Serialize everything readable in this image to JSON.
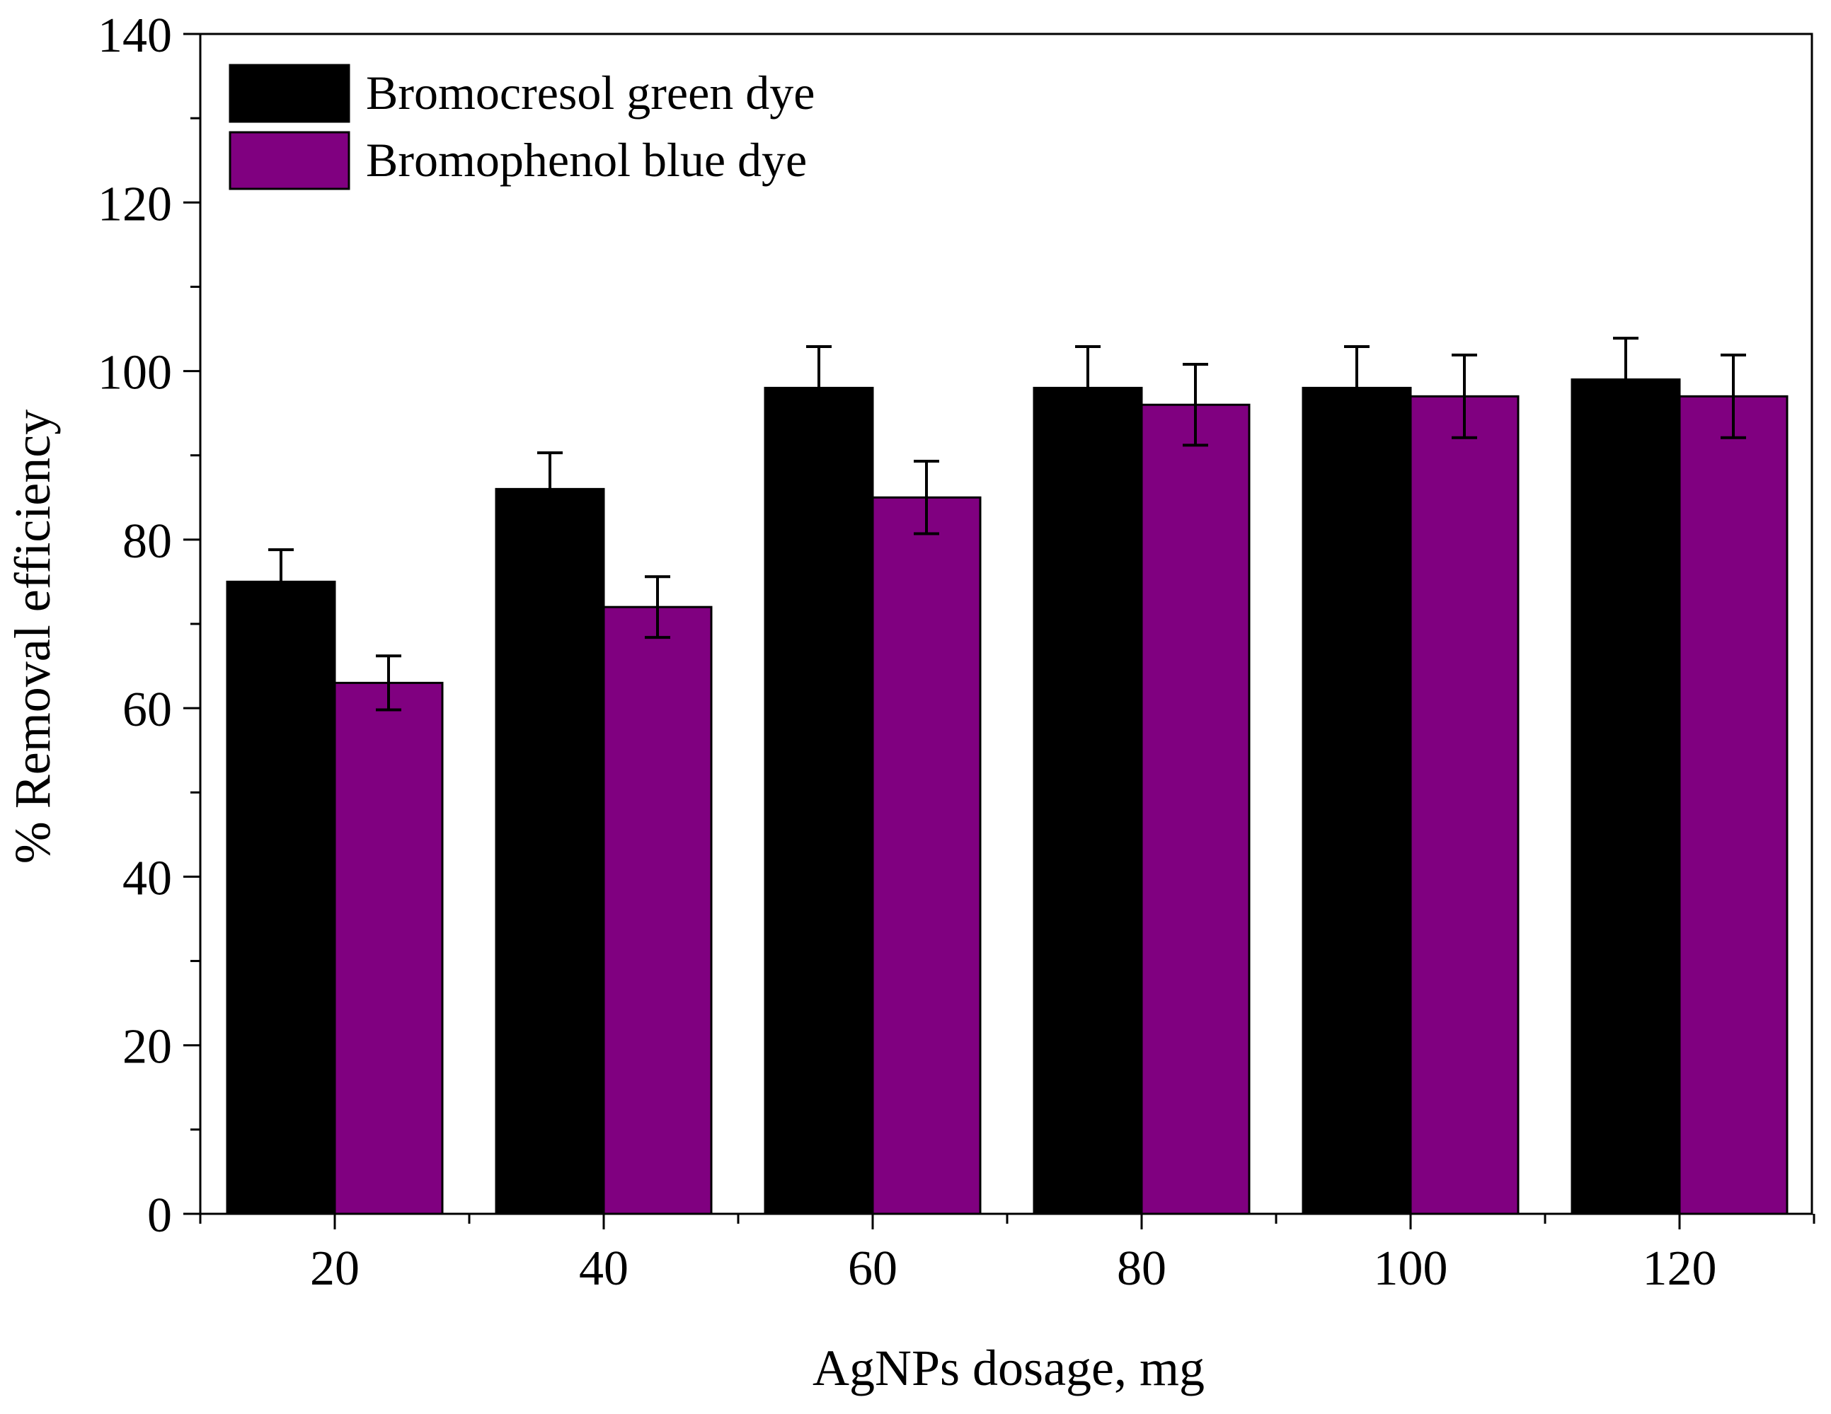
{
  "chart_data": {
    "type": "bar",
    "title": "",
    "xlabel": "AgNPs dosage, mg",
    "ylabel": "% Removal efficiency",
    "categories": [
      "20",
      "40",
      "60",
      "80",
      "100",
      "120"
    ],
    "ylim": [
      0,
      140
    ],
    "yticks": [
      "0",
      "20",
      "40",
      "60",
      "80",
      "100",
      "120",
      "140"
    ],
    "ytick_values": [
      0,
      20,
      40,
      60,
      80,
      100,
      120,
      140
    ],
    "grid": false,
    "legend_position": "top-left",
    "series": [
      {
        "name": "Bromocresol green dye",
        "color": "#000000",
        "values": [
          75,
          86,
          98,
          98,
          98,
          99
        ],
        "errors": [
          3.8,
          4.3,
          4.9,
          4.9,
          4.9,
          4.9
        ]
      },
      {
        "name": "Bromophenol blue dye",
        "color": "#800080",
        "values": [
          63,
          72,
          85,
          96,
          97,
          97
        ],
        "errors": [
          3.2,
          3.6,
          4.3,
          4.8,
          4.9,
          4.9
        ]
      }
    ]
  }
}
